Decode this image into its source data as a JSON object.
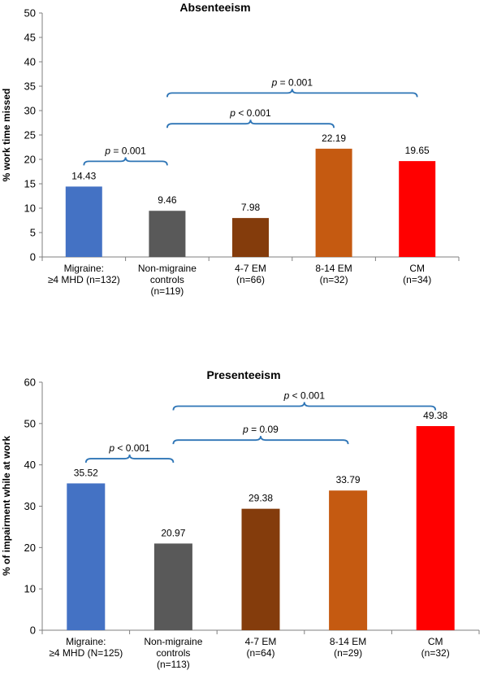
{
  "chart_data": [
    {
      "type": "bar",
      "title": "Absenteeism",
      "ylabel": "% work time missed",
      "ylim": [
        0,
        50
      ],
      "yticks": [
        0,
        5,
        10,
        15,
        20,
        25,
        30,
        35,
        40,
        45,
        50
      ],
      "categories": [
        [
          "Migraine:",
          "≥4 MHD (n=132)"
        ],
        [
          "Non-migraine",
          "controls",
          "(n=119)"
        ],
        [
          "4-7 EM",
          "(n=66)"
        ],
        [
          "8-14 EM",
          "(n=32)"
        ],
        [
          "CM",
          "(n=34)"
        ]
      ],
      "values": [
        14.43,
        9.46,
        7.98,
        22.19,
        19.65
      ],
      "value_labels": [
        "14.43",
        "9.46",
        "7.98",
        "22.19",
        "19.65"
      ],
      "colors": [
        "#4472c4",
        "#595959",
        "#843c0c",
        "#c55a11",
        "#ff0000"
      ],
      "annotations": [
        {
          "from": 0,
          "to": 1,
          "level": 19.6,
          "p": "p",
          "rest": " = 0.001"
        },
        {
          "from": 1,
          "to": 3,
          "level": 27.3,
          "p": "p",
          "rest": " < 0.001"
        },
        {
          "from": 1,
          "to": 4,
          "level": 33.6,
          "p": "p",
          "rest": " = 0.001"
        }
      ]
    },
    {
      "type": "bar",
      "title": "Presenteeism",
      "ylabel": "% of impairment  while at work",
      "ylim": [
        0,
        60
      ],
      "yticks": [
        0,
        10,
        20,
        30,
        40,
        50,
        60
      ],
      "categories": [
        [
          "Migraine:",
          "≥4 MHD  (N=125)"
        ],
        [
          "Non-migraine",
          "controls",
          "(n=113)"
        ],
        [
          "4-7 EM",
          "(n=64)"
        ],
        [
          "8-14 EM",
          "(n=29)"
        ],
        [
          "CM",
          "(n=32)"
        ]
      ],
      "values": [
        35.52,
        20.97,
        29.38,
        33.79,
        49.38
      ],
      "value_labels": [
        "35.52",
        "20.97",
        "29.38",
        "33.79",
        "49.38"
      ],
      "colors": [
        "#4472c4",
        "#595959",
        "#843c0c",
        "#c55a11",
        "#ff0000"
      ],
      "annotations": [
        {
          "from": 0,
          "to": 1,
          "level": 41.5,
          "p": "p",
          "rest": " < 0.001"
        },
        {
          "from": 1,
          "to": 3,
          "level": 46.0,
          "p": "p",
          "rest": " = 0.09"
        },
        {
          "from": 1,
          "to": 4,
          "level": 54.2,
          "p": "p",
          "rest": " < 0.001"
        }
      ]
    }
  ]
}
